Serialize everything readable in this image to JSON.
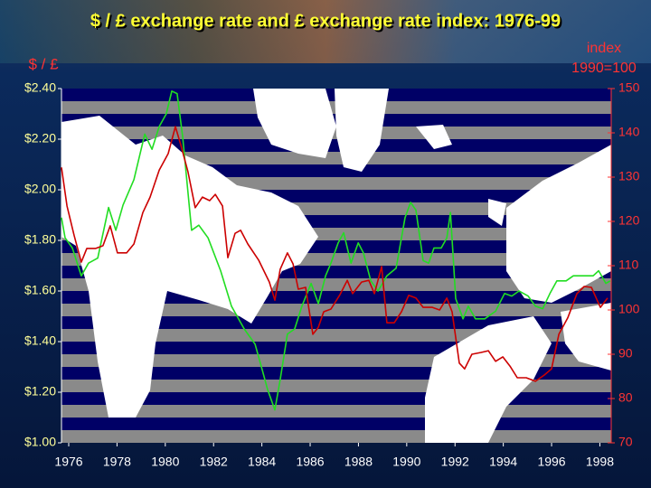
{
  "chart_data": {
    "type": "line",
    "title": "$ / £ exchange rate and £ exchange rate index: 1976-99",
    "y_label": "$ / £",
    "y2_label": [
      "index",
      "1990=100"
    ],
    "xlim": [
      1975.7,
      1998.47
    ],
    "xticks": [
      1976,
      1978,
      1980,
      1982,
      1984,
      1986,
      1988,
      1990,
      1992,
      1994,
      1996,
      1998
    ],
    "ylim": [
      1.0,
      2.4
    ],
    "yticks": [
      {
        "value": 1.0,
        "label": "$1.00"
      },
      {
        "value": 1.2,
        "label": "$1.20"
      },
      {
        "value": 1.4,
        "label": "$1.40"
      },
      {
        "value": 1.6,
        "label": "$1.60"
      },
      {
        "value": 1.8,
        "label": "$1.80"
      },
      {
        "value": 2.0,
        "label": "$2.00"
      },
      {
        "value": 2.2,
        "label": "$2.20"
      },
      {
        "value": 2.4,
        "label": "$2.40"
      }
    ],
    "y2lim": [
      70,
      150
    ],
    "y2ticks": [
      70,
      80,
      90,
      100,
      110,
      120,
      130,
      140,
      150
    ],
    "series": [
      {
        "color": "#22dd22",
        "axis": "y",
        "x": [
          1975.7,
          1975.85,
          1976.15,
          1976.52,
          1976.82,
          1977.2,
          1977.65,
          1977.95,
          1978.25,
          1978.7,
          1979.15,
          1979.45,
          1979.75,
          1980.04,
          1980.27,
          1980.49,
          1980.72,
          1981.09,
          1981.39,
          1981.77,
          1982.29,
          1982.74,
          1983.27,
          1983.72,
          1984.01,
          1984.24,
          1984.54,
          1984.76,
          1985.06,
          1985.36,
          1985.66,
          1986.04,
          1986.34,
          1986.64,
          1986.86,
          1987.16,
          1987.39,
          1987.69,
          1987.99,
          1988.21,
          1988.51,
          1988.81,
          1989.18,
          1989.56,
          1989.93,
          1990.16,
          1990.38,
          1990.68,
          1990.91,
          1991.13,
          1991.43,
          1991.66,
          1991.81,
          1992.03,
          1992.33,
          1992.55,
          1992.85,
          1993.23,
          1993.68,
          1994.05,
          1994.35,
          1994.65,
          1995.03,
          1995.33,
          1995.63,
          1995.93,
          1996.22,
          1996.6,
          1996.9,
          1997.35,
          1997.72,
          1997.95,
          1998.25,
          1998.43
        ],
        "values": [
          1.89,
          1.81,
          1.77,
          1.66,
          1.71,
          1.73,
          1.93,
          1.84,
          1.94,
          2.04,
          2.22,
          2.16,
          2.25,
          2.3,
          2.39,
          2.38,
          2.21,
          1.84,
          1.86,
          1.81,
          1.68,
          1.54,
          1.45,
          1.39,
          1.29,
          1.21,
          1.13,
          1.25,
          1.43,
          1.45,
          1.54,
          1.63,
          1.55,
          1.66,
          1.71,
          1.79,
          1.83,
          1.71,
          1.79,
          1.75,
          1.64,
          1.6,
          1.66,
          1.69,
          1.89,
          1.95,
          1.92,
          1.72,
          1.71,
          1.77,
          1.77,
          1.81,
          1.91,
          1.57,
          1.49,
          1.54,
          1.49,
          1.49,
          1.52,
          1.59,
          1.58,
          1.6,
          1.58,
          1.54,
          1.53,
          1.59,
          1.64,
          1.64,
          1.66,
          1.66,
          1.66,
          1.68,
          1.63,
          1.64
        ]
      },
      {
        "color": "#cc0000",
        "axis": "y2",
        "x": [
          1975.7,
          1975.93,
          1976.22,
          1976.52,
          1976.75,
          1977.12,
          1977.42,
          1977.72,
          1978.02,
          1978.4,
          1978.7,
          1979.07,
          1979.37,
          1979.75,
          1980.12,
          1980.42,
          1980.64,
          1980.94,
          1981.24,
          1981.54,
          1981.84,
          1982.07,
          1982.37,
          1982.59,
          1982.89,
          1983.12,
          1983.42,
          1983.87,
          1984.31,
          1984.54,
          1984.76,
          1985.06,
          1985.29,
          1985.51,
          1985.81,
          1986.11,
          1986.34,
          1986.56,
          1986.86,
          1987.24,
          1987.54,
          1987.76,
          1988.13,
          1988.43,
          1988.66,
          1988.96,
          1989.18,
          1989.48,
          1989.78,
          1990.08,
          1990.38,
          1990.68,
          1991.06,
          1991.36,
          1991.66,
          1991.88,
          1992.18,
          1992.4,
          1992.7,
          1993.08,
          1993.38,
          1993.68,
          1993.98,
          1994.28,
          1994.58,
          1994.95,
          1995.33,
          1995.7,
          1996.0,
          1996.3,
          1996.67,
          1997.05,
          1997.35,
          1997.65,
          1998.02,
          1998.32
        ],
        "values": [
          132.2,
          123.5,
          116.9,
          110.8,
          113.9,
          113.9,
          114.5,
          119.0,
          112.9,
          112.9,
          114.9,
          122.0,
          125.5,
          131.6,
          135.3,
          141.4,
          137.3,
          131.2,
          123.1,
          125.5,
          124.7,
          126.1,
          123.5,
          111.8,
          117.3,
          118.0,
          114.9,
          111.2,
          106.3,
          102.2,
          109.2,
          112.9,
          110.4,
          104.7,
          105.1,
          94.5,
          96.1,
          99.6,
          100.2,
          103.5,
          106.7,
          103.7,
          106.3,
          106.7,
          103.7,
          109.8,
          97.1,
          97.1,
          99.6,
          103.3,
          102.7,
          100.6,
          100.6,
          100.0,
          102.7,
          99.6,
          88.0,
          86.7,
          90.0,
          90.4,
          90.8,
          88.4,
          89.4,
          87.3,
          84.7,
          84.7,
          83.9,
          85.3,
          86.7,
          94.5,
          98.2,
          103.7,
          105.3,
          105.1,
          100.6,
          102.7
        ]
      }
    ]
  }
}
